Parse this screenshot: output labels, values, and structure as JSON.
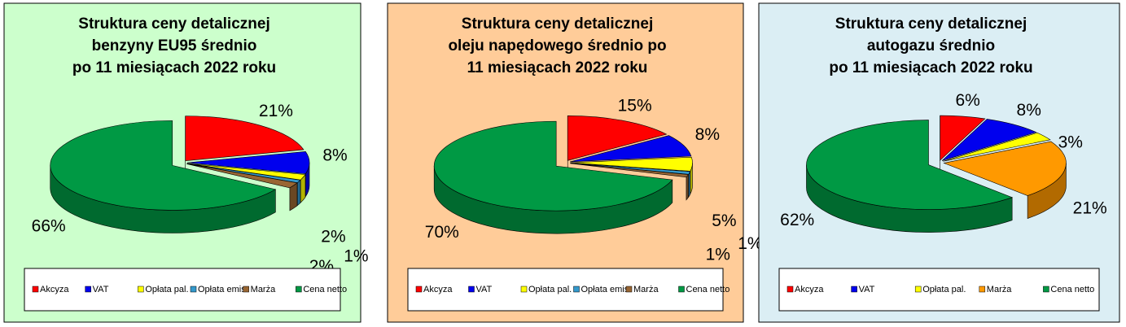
{
  "chart_data": [
    {
      "type": "pie",
      "title": [
        "Struktura ceny detalicznej",
        "benzyny EU95 średnio",
        "po 11 miesiącach 2022 roku"
      ],
      "categories": [
        "Akcyza",
        "VAT",
        "Opłata pal.",
        "Opłata emis.",
        "Marża",
        "Cena netto"
      ],
      "values": [
        21,
        8,
        2,
        1,
        2,
        66
      ],
      "value_labels": [
        "21%",
        "8%",
        "2%",
        "1%",
        "2%",
        "66%"
      ],
      "colors": [
        "#ff0000",
        "#0000ee",
        "#ffff00",
        "#3399cc",
        "#996633",
        "#009944"
      ],
      "background": "#ccffcc"
    },
    {
      "type": "pie",
      "title": [
        "Struktura ceny detalicznej",
        "oleju napędowego średnio po",
        "11 miesiącach 2022 roku"
      ],
      "categories": [
        "Akcyza",
        "VAT",
        "Opłata pal.",
        "Opłata emis.",
        "Marża",
        "Cena netto"
      ],
      "values": [
        15,
        8,
        5,
        1,
        1,
        70
      ],
      "value_labels": [
        "15%",
        "8%",
        "5%",
        "1%",
        "1%",
        "70%"
      ],
      "colors": [
        "#ff0000",
        "#0000ee",
        "#ffff00",
        "#3399cc",
        "#996633",
        "#009944"
      ],
      "background": "#ffcc99"
    },
    {
      "type": "pie",
      "title": [
        "Struktura ceny detalicznej",
        "autogazu średnio",
        "po 11 miesiącach 2022 roku"
      ],
      "categories": [
        "Akcyza",
        "VAT",
        "Opłata pal.",
        "Marża",
        "Cena netto"
      ],
      "values": [
        6,
        8,
        3,
        21,
        62
      ],
      "value_labels": [
        "6%",
        "8%",
        "3%",
        "21%",
        "62%"
      ],
      "colors": [
        "#ff0000",
        "#0000ee",
        "#ffff00",
        "#ff9900",
        "#009944"
      ],
      "background": "#dbeef4"
    }
  ]
}
